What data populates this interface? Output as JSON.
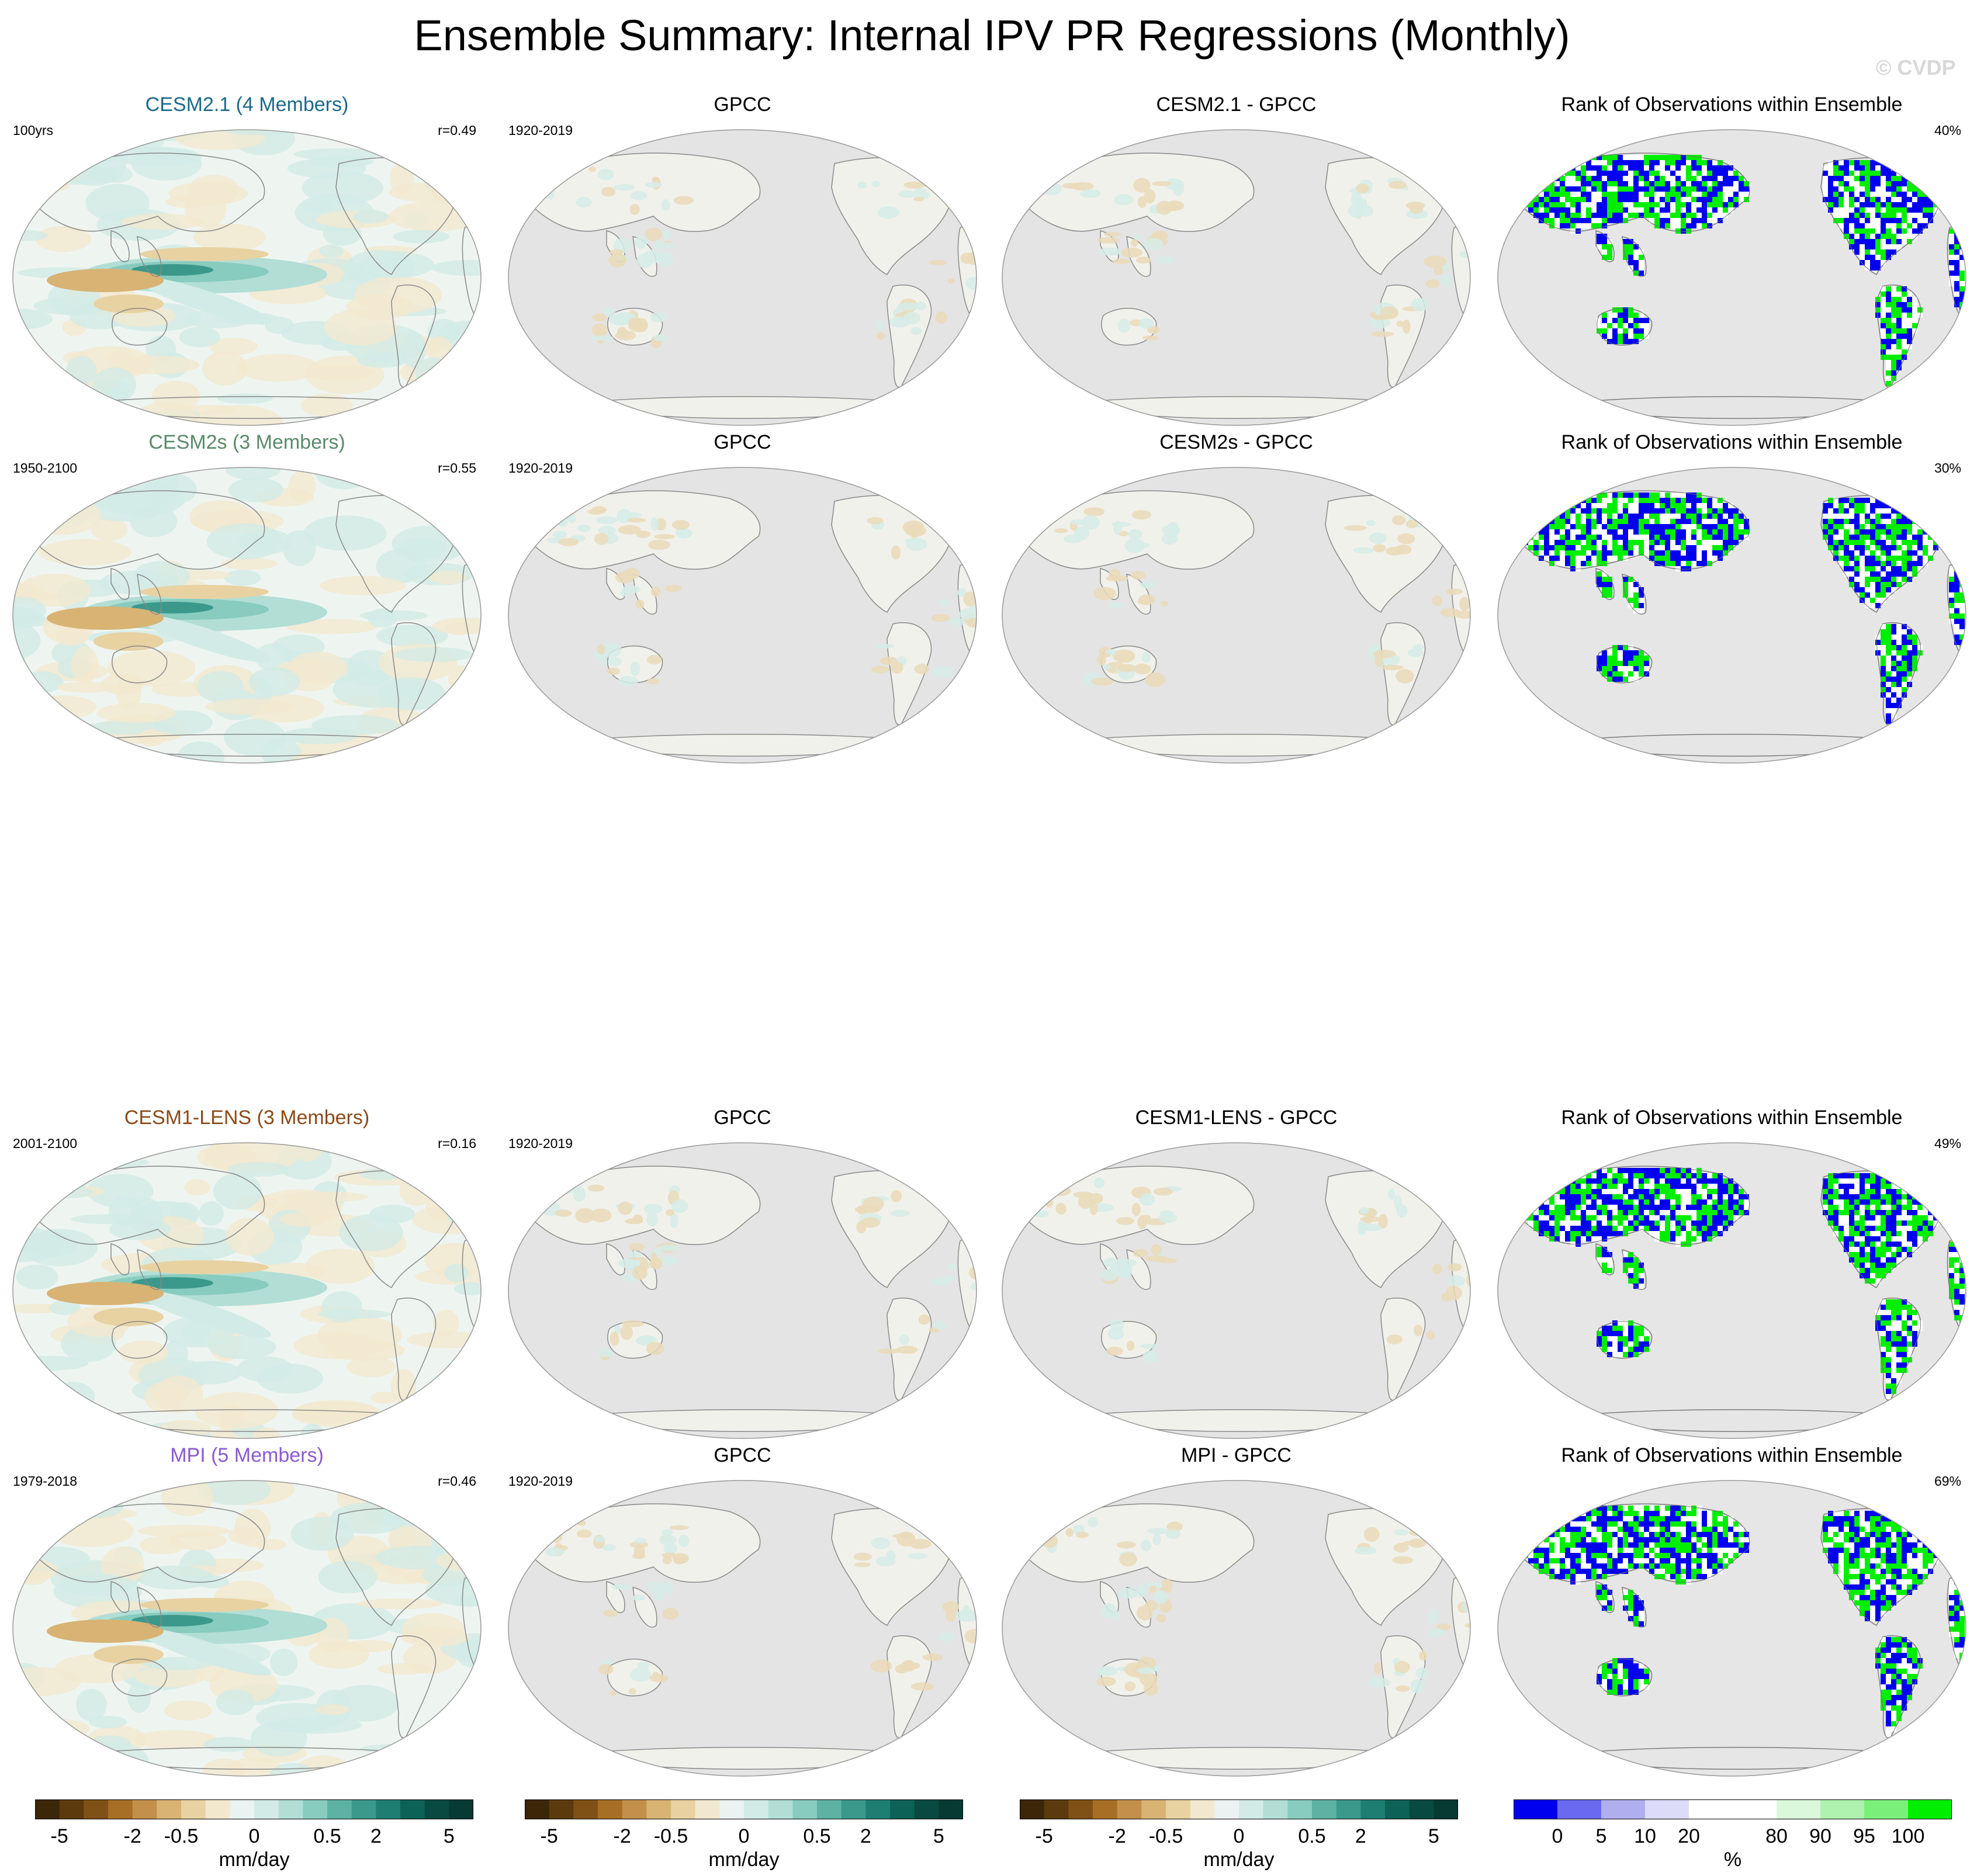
{
  "title": "Ensemble Summary: Internal IPV PR Regressions (Monthly)",
  "watermark": "© CVDP",
  "rows": [
    {
      "model_title": "CESM2.1 (4 Members)",
      "model_color": "#1a6a8a",
      "model_period": "100yrs",
      "corr": "r=0.49",
      "obs_title": "GPCC",
      "obs_period": "1920-2019",
      "diff_title": "CESM2.1 - GPCC",
      "rank_title": "Rank of Observations within Ensemble",
      "rank_pct": "40%"
    },
    {
      "model_title": "CESM2s (3 Members)",
      "model_color": "#5a8a6a",
      "model_period": "1950-2100",
      "corr": "r=0.55",
      "obs_title": "GPCC",
      "obs_period": "1920-2019",
      "diff_title": "CESM2s - GPCC",
      "rank_title": "Rank of Observations within Ensemble",
      "rank_pct": "30%"
    },
    {
      "model_title": "CESM1-LENS (3 Members)",
      "model_color": "#8b4a1a",
      "model_period": "2001-2100",
      "corr": "r=0.16",
      "obs_title": "GPCC",
      "obs_period": "1920-2019",
      "diff_title": "CESM1-LENS - GPCC",
      "rank_title": "Rank of Observations within Ensemble",
      "rank_pct": "49%"
    },
    {
      "model_title": "MPI (5 Members)",
      "model_color": "#8a5ad0",
      "model_period": "1979-2018",
      "corr": "r=0.46",
      "obs_title": "GPCC",
      "obs_period": "1920-2019",
      "diff_title": "MPI - GPCC",
      "rank_title": "Rank of Observations within Ensemble",
      "rank_pct": "69%"
    }
  ],
  "colorbars": {
    "precip": {
      "colors": [
        "#3b2608",
        "#5c3a0d",
        "#7f5116",
        "#a66f25",
        "#c2904a",
        "#d8b374",
        "#e8d2a2",
        "#f2e8cf",
        "#eaf3f1",
        "#d2ebe6",
        "#b2ded6",
        "#88cbbf",
        "#5eb2a4",
        "#3b998b",
        "#1f7e72",
        "#0d6257",
        "#084a42",
        "#063a33"
      ],
      "ticks": [
        "-5",
        "-2",
        "-0.5",
        "0",
        "0.5",
        "2",
        "5"
      ],
      "unit": "mm/day"
    },
    "rank": {
      "colors": [
        "#0000ee",
        "#6a6af0",
        "#afafef",
        "#dcdcf8",
        "#ffffff",
        "#ffffff",
        "#dcf8dc",
        "#aff2af",
        "#7af07a",
        "#00ee00"
      ],
      "ticks": [
        "0",
        "5",
        "10",
        "20",
        "80",
        "90",
        "95",
        "100"
      ],
      "unit": "%"
    }
  },
  "chart_data": [
    {
      "type": "heatmap",
      "title": "CESM2.1 (4 Members)",
      "subtitle_left": "100yrs",
      "subtitle_right": "r=0.49",
      "units": "mm/day",
      "range": [
        -5,
        5
      ]
    },
    {
      "type": "heatmap",
      "title": "GPCC",
      "subtitle_left": "1920-2019",
      "units": "mm/day",
      "range": [
        -5,
        5
      ]
    },
    {
      "type": "heatmap",
      "title": "CESM2.1 - GPCC",
      "units": "mm/day",
      "range": [
        -5,
        5
      ]
    },
    {
      "type": "heatmap",
      "title": "Rank of Observations within Ensemble",
      "subtitle_right": "40%",
      "units": "%",
      "range": [
        0,
        100
      ]
    },
    {
      "type": "heatmap",
      "title": "CESM2s (3 Members)",
      "subtitle_left": "1950-2100",
      "subtitle_right": "r=0.55",
      "units": "mm/day",
      "range": [
        -5,
        5
      ]
    },
    {
      "type": "heatmap",
      "title": "GPCC",
      "subtitle_left": "1920-2019",
      "units": "mm/day",
      "range": [
        -5,
        5
      ]
    },
    {
      "type": "heatmap",
      "title": "CESM2s - GPCC",
      "units": "mm/day",
      "range": [
        -5,
        5
      ]
    },
    {
      "type": "heatmap",
      "title": "Rank of Observations within Ensemble",
      "subtitle_right": "30%",
      "units": "%",
      "range": [
        0,
        100
      ]
    },
    {
      "type": "heatmap",
      "title": "CESM1-LENS (3 Members)",
      "subtitle_left": "2001-2100",
      "subtitle_right": "r=0.16",
      "units": "mm/day",
      "range": [
        -5,
        5
      ]
    },
    {
      "type": "heatmap",
      "title": "GPCC",
      "subtitle_left": "1920-2019",
      "units": "mm/day",
      "range": [
        -5,
        5
      ]
    },
    {
      "type": "heatmap",
      "title": "CESM1-LENS - GPCC",
      "units": "mm/day",
      "range": [
        -5,
        5
      ]
    },
    {
      "type": "heatmap",
      "title": "Rank of Observations within Ensemble",
      "subtitle_right": "49%",
      "units": "%",
      "range": [
        0,
        100
      ]
    },
    {
      "type": "heatmap",
      "title": "MPI (5 Members)",
      "subtitle_left": "1979-2018",
      "subtitle_right": "r=0.46",
      "units": "mm/day",
      "range": [
        -5,
        5
      ]
    },
    {
      "type": "heatmap",
      "title": "GPCC",
      "subtitle_left": "1920-2019",
      "units": "mm/day",
      "range": [
        -5,
        5
      ]
    },
    {
      "type": "heatmap",
      "title": "MPI - GPCC",
      "units": "mm/day",
      "range": [
        -5,
        5
      ]
    },
    {
      "type": "heatmap",
      "title": "Rank of Observations within Ensemble",
      "subtitle_right": "69%",
      "units": "%",
      "range": [
        0,
        100
      ]
    }
  ]
}
